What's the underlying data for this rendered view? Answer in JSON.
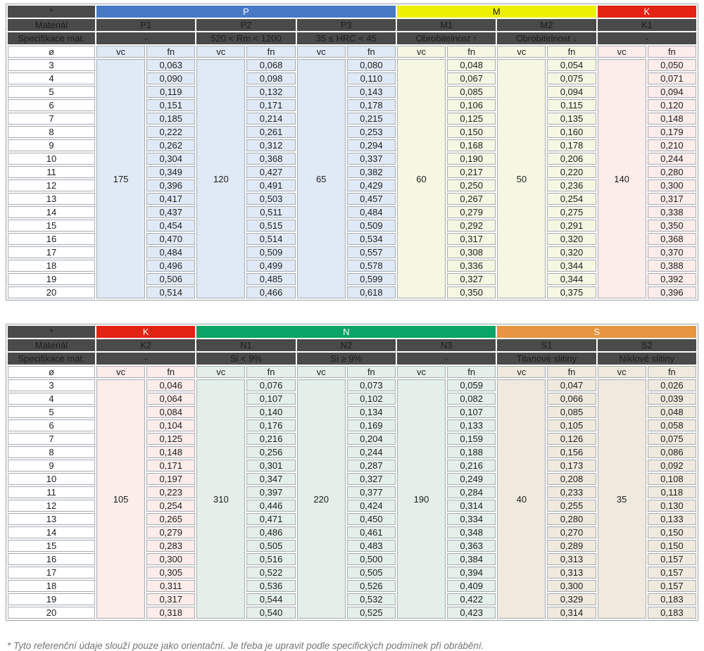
{
  "labels": {
    "corner": "*",
    "material_row": "Materiál",
    "spec_row": "Specifikace mat.",
    "diameter": "ø",
    "vc": "vc",
    "fn": "fn"
  },
  "colors": {
    "P": {
      "band": "#4879c5",
      "band_text": "#ffffff",
      "tint": "#e0eaf6"
    },
    "M": {
      "band": "#edf000",
      "band_text": "#1d1d1d",
      "tint": "#f5f7e3"
    },
    "K": {
      "band": "#e42313",
      "band_text": "#ffffff",
      "tint": "#fcecea"
    },
    "N": {
      "band": "#0aa466",
      "band_text": "#ffffff",
      "tint": "#e3efe8"
    },
    "S": {
      "band": "#e79540",
      "band_text": "#ffffff",
      "tint": "#f0e9de"
    },
    "dark": "#4a4a4a"
  },
  "diameters": [
    3,
    4,
    5,
    6,
    7,
    8,
    9,
    10,
    11,
    12,
    13,
    14,
    15,
    16,
    17,
    18,
    19,
    20
  ],
  "tables": [
    {
      "groups": [
        {
          "key": "P",
          "label": "P",
          "columns": [
            {
              "label": "P1",
              "spec": "-",
              "vc": "175",
              "fn": [
                "0,063",
                "0,090",
                "0,119",
                "0,151",
                "0,185",
                "0,222",
                "0,262",
                "0,304",
                "0,349",
                "0,396",
                "0,417",
                "0,437",
                "0,454",
                "0,470",
                "0,484",
                "0,496",
                "0,506",
                "0,514"
              ]
            },
            {
              "label": "P2",
              "spec": "520 < Rm < 1200",
              "vc": "120",
              "fn": [
                "0,068",
                "0,098",
                "0,132",
                "0,171",
                "0,214",
                "0,261",
                "0,312",
                "0,368",
                "0,427",
                "0,491",
                "0,503",
                "0,511",
                "0,515",
                "0,514",
                "0,509",
                "0,499",
                "0,485",
                "0,466"
              ]
            },
            {
              "label": "P3",
              "spec": "35 ≤ HRC < 45",
              "vc": "65",
              "fn": [
                "0,080",
                "0,110",
                "0,143",
                "0,178",
                "0,215",
                "0,253",
                "0,294",
                "0,337",
                "0,382",
                "0,429",
                "0,457",
                "0,484",
                "0,509",
                "0,534",
                "0,557",
                "0,578",
                "0,599",
                "0,618"
              ]
            }
          ]
        },
        {
          "key": "M",
          "label": "M",
          "columns": [
            {
              "label": "M1",
              "spec": "Obrobitelnost ↑",
              "vc": "60",
              "fn": [
                "0,048",
                "0,067",
                "0,085",
                "0,106",
                "0,125",
                "0,150",
                "0,168",
                "0,190",
                "0,217",
                "0,250",
                "0,267",
                "0,279",
                "0,292",
                "0,317",
                "0,308",
                "0,336",
                "0,327",
                "0,350"
              ]
            },
            {
              "label": "M2",
              "spec": "Obrobitelnost ↓",
              "vc": "50",
              "fn": [
                "0,054",
                "0,075",
                "0,094",
                "0,115",
                "0,135",
                "0,160",
                "0,178",
                "0,206",
                "0,220",
                "0,236",
                "0,254",
                "0,275",
                "0,291",
                "0,320",
                "0,320",
                "0,344",
                "0,344",
                "0,375"
              ]
            }
          ]
        },
        {
          "key": "K",
          "label": "K",
          "columns": [
            {
              "label": "K1",
              "spec": "-",
              "vc": "140",
              "fn": [
                "0,050",
                "0,071",
                "0,094",
                "0,120",
                "0,148",
                "0,179",
                "0,210",
                "0,244",
                "0,280",
                "0,300",
                "0,317",
                "0,338",
                "0,350",
                "0,368",
                "0,370",
                "0,388",
                "0,392",
                "0,396"
              ]
            }
          ]
        }
      ]
    },
    {
      "groups": [
        {
          "key": "K",
          "label": "K",
          "columns": [
            {
              "label": "K2",
              "spec": "-",
              "vc": "105",
              "fn": [
                "0,046",
                "0,064",
                "0,084",
                "0,104",
                "0,125",
                "0,148",
                "0,171",
                "0,197",
                "0,223",
                "0,254",
                "0,265",
                "0,279",
                "0,283",
                "0,300",
                "0,305",
                "0,311",
                "0,317",
                "0,318"
              ]
            }
          ]
        },
        {
          "key": "N",
          "label": "N",
          "columns": [
            {
              "label": "N1",
              "spec": "Si < 9%",
              "vc": "310",
              "fn": [
                "0,076",
                "0,107",
                "0,140",
                "0,176",
                "0,216",
                "0,256",
                "0,301",
                "0,347",
                "0,397",
                "0,446",
                "0,471",
                "0,486",
                "0,505",
                "0,516",
                "0,522",
                "0,536",
                "0,544",
                "0,540"
              ]
            },
            {
              "label": "N2",
              "spec": "Si ≥ 9%",
              "vc": "220",
              "fn": [
                "0,073",
                "0,102",
                "0,134",
                "0,169",
                "0,204",
                "0,244",
                "0,287",
                "0,327",
                "0,377",
                "0,424",
                "0,450",
                "0,461",
                "0,483",
                "0,500",
                "0,505",
                "0,526",
                "0,532",
                "0,525"
              ]
            },
            {
              "label": "N3",
              "spec": "-",
              "vc": "190",
              "fn": [
                "0,059",
                "0,082",
                "0,107",
                "0,133",
                "0,159",
                "0,188",
                "0,216",
                "0,249",
                "0,284",
                "0,314",
                "0,334",
                "0,348",
                "0,363",
                "0,384",
                "0,394",
                "0,409",
                "0,422",
                "0,423"
              ]
            }
          ]
        },
        {
          "key": "S",
          "label": "S",
          "columns": [
            {
              "label": "S1",
              "spec": "Titanové slitiny",
              "vc": "40",
              "fn": [
                "0,047",
                "0,066",
                "0,085",
                "0,105",
                "0,126",
                "0,156",
                "0,173",
                "0,208",
                "0,233",
                "0,255",
                "0,280",
                "0,270",
                "0,289",
                "0,313",
                "0,313",
                "0,300",
                "0,329",
                "0,314"
              ]
            },
            {
              "label": "S2",
              "spec": "Niklové slitiny",
              "vc": "35",
              "fn": [
                "0,026",
                "0,039",
                "0,048",
                "0,058",
                "0,075",
                "0,086",
                "0,092",
                "0,108",
                "0,118",
                "0,130",
                "0,133",
                "0,150",
                "0,150",
                "0,157",
                "0,157",
                "0,157",
                "0,183",
                "0,183"
              ]
            }
          ]
        }
      ]
    }
  ],
  "page": {
    "footnote": "* Tyto referenční údaje slouží pouze jako orientační. Je třeba je upravit podle specifických podmínek při obrábění."
  }
}
